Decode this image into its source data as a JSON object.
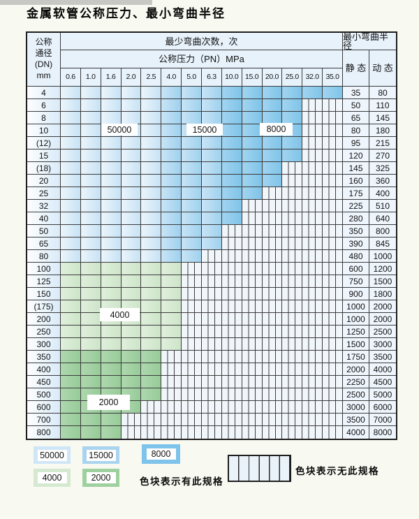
{
  "page": {
    "title": "金属软管公称压力、最小弯曲半径"
  },
  "table": {
    "corner": {
      "line1": "公称",
      "line2": "通径",
      "line3": "(DN)",
      "line4": "mm"
    },
    "headers": {
      "cycles": "最少弯曲次数，次",
      "pressure": "公称压力（PN）MPa",
      "radius": "最小弯曲半径",
      "static": "静 态",
      "dynamic": "动 态"
    },
    "pressures": [
      "0.6",
      "1.0",
      "1.6",
      "2.0",
      "2.5",
      "4.0",
      "5.0",
      "6.3",
      "10.0",
      "15.0",
      "20.0",
      "25.0",
      "32.0",
      "35.0"
    ],
    "cycle_bands": {
      "light_blue": "50000",
      "medium_blue": "15000",
      "dark_blue": "8000",
      "light_green": "4000",
      "dark_green": "2000"
    },
    "rows": [
      {
        "dn": "4",
        "static": "35",
        "dynamic": "80",
        "spec_through": "35.0",
        "zone": "blue"
      },
      {
        "dn": "6",
        "static": "50",
        "dynamic": "110",
        "spec_through": "25.0",
        "zone": "blue"
      },
      {
        "dn": "8",
        "static": "65",
        "dynamic": "145",
        "spec_through": "25.0",
        "zone": "blue"
      },
      {
        "dn": "10",
        "static": "80",
        "dynamic": "180",
        "spec_through": "25.0",
        "zone": "blue"
      },
      {
        "dn": "(12)",
        "static": "95",
        "dynamic": "215",
        "spec_through": "25.0",
        "zone": "blue"
      },
      {
        "dn": "15",
        "static": "120",
        "dynamic": "270",
        "spec_through": "25.0",
        "zone": "blue"
      },
      {
        "dn": "(18)",
        "static": "145",
        "dynamic": "325",
        "spec_through": "20.0",
        "zone": "blue"
      },
      {
        "dn": "20",
        "static": "160",
        "dynamic": "360",
        "spec_through": "20.0",
        "zone": "blue"
      },
      {
        "dn": "25",
        "static": "175",
        "dynamic": "400",
        "spec_through": "15.0",
        "zone": "blue"
      },
      {
        "dn": "32",
        "static": "225",
        "dynamic": "510",
        "spec_through": "10.0",
        "zone": "blue"
      },
      {
        "dn": "40",
        "static": "280",
        "dynamic": "640",
        "spec_through": "10.0",
        "zone": "blue"
      },
      {
        "dn": "50",
        "static": "350",
        "dynamic": "800",
        "spec_through": "6.3",
        "zone": "blue"
      },
      {
        "dn": "65",
        "static": "390",
        "dynamic": "845",
        "spec_through": "6.3",
        "zone": "blue"
      },
      {
        "dn": "80",
        "static": "480",
        "dynamic": "1000",
        "spec_through": "5.0",
        "zone": "blue"
      },
      {
        "dn": "100",
        "static": "600",
        "dynamic": "1200",
        "spec_through": "4.0",
        "zone": "g4000"
      },
      {
        "dn": "125",
        "static": "750",
        "dynamic": "1500",
        "spec_through": "4.0",
        "zone": "g4000"
      },
      {
        "dn": "150",
        "static": "900",
        "dynamic": "1800",
        "spec_through": "4.0",
        "zone": "g4000"
      },
      {
        "dn": "(175)",
        "static": "1000",
        "dynamic": "2000",
        "spec_through": "4.0",
        "zone": "g4000"
      },
      {
        "dn": "200",
        "static": "1000",
        "dynamic": "2000",
        "spec_through": "4.0",
        "zone": "g4000"
      },
      {
        "dn": "250",
        "static": "1250",
        "dynamic": "2500",
        "spec_through": "4.0",
        "zone": "g4000"
      },
      {
        "dn": "300",
        "static": "1500",
        "dynamic": "3000",
        "spec_through": "4.0",
        "zone": "g4000"
      },
      {
        "dn": "350",
        "static": "1750",
        "dynamic": "3500",
        "spec_through": "2.5",
        "zone": "g2000"
      },
      {
        "dn": "400",
        "static": "2000",
        "dynamic": "4000",
        "spec_through": "2.5",
        "zone": "g2000"
      },
      {
        "dn": "450",
        "static": "2250",
        "dynamic": "4500",
        "spec_through": "2.5",
        "zone": "g2000"
      },
      {
        "dn": "500",
        "static": "2500",
        "dynamic": "5000",
        "spec_through": "2.5",
        "zone": "g2000"
      },
      {
        "dn": "600",
        "static": "3000",
        "dynamic": "6000",
        "spec_through": "2.0",
        "zone": "g2000"
      },
      {
        "dn": "700",
        "static": "3500",
        "dynamic": "7000",
        "spec_through": "1.6",
        "zone": "g2000"
      },
      {
        "dn": "800",
        "static": "4000",
        "dynamic": "8000",
        "spec_through": "1.6",
        "zone": "g2000"
      }
    ],
    "cycle_labels": [
      {
        "id": "label-50000",
        "text": "50000"
      },
      {
        "id": "label-15000",
        "text": "15000"
      },
      {
        "id": "label-8000",
        "text": "8000"
      },
      {
        "id": "label-4000",
        "text": "4000"
      },
      {
        "id": "label-2000",
        "text": "2000"
      }
    ]
  },
  "legend": {
    "swatches": [
      {
        "value": "50000",
        "band": "light_blue"
      },
      {
        "value": "15000",
        "band": "medium_blue"
      },
      {
        "value": "8000",
        "band": "dark_blue"
      },
      {
        "value": "4000",
        "band": "light_green"
      },
      {
        "value": "2000",
        "band": "dark_green"
      }
    ],
    "has_spec_text": "色块表示有此规格",
    "no_spec_text": "色块表示无此规格"
  },
  "colors": {
    "light_blue": "#cfe6f7",
    "medium_blue": "#a9d4ef",
    "dark_blue": "#7ec3ea",
    "light_green": "#d5e9d1",
    "dark_green": "#9fd1a0",
    "grid_line": "#3b3b3b",
    "header_fill": "#e7f2fb"
  }
}
